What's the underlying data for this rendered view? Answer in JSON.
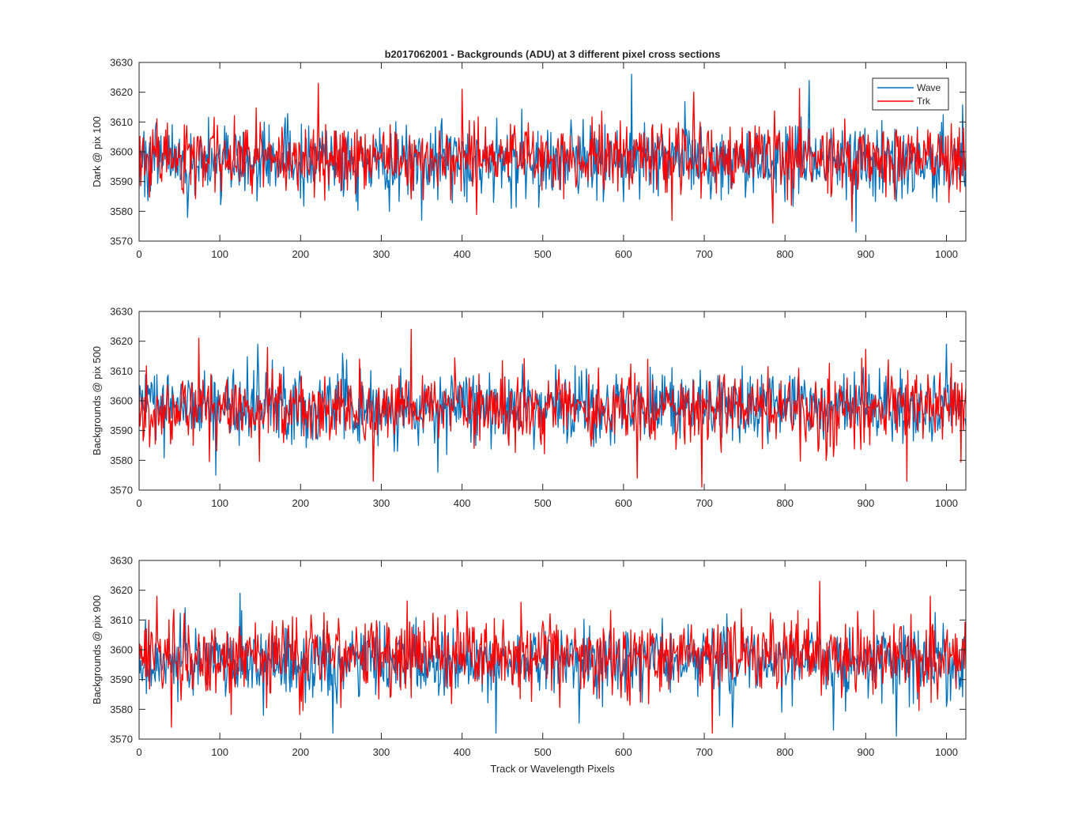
{
  "figure": {
    "title": "b2017062001 - Backgrounds (ADU) at 3 different pixel cross sections",
    "xlabel": "Track or Wavelength Pixels"
  },
  "chart_data": [
    {
      "type": "line",
      "ylabel": "Dark @ pix 100",
      "xlim": [
        0,
        1024
      ],
      "ylim": [
        3570,
        3630
      ],
      "x_ticks": [
        "0",
        "100",
        "200",
        "300",
        "400",
        "500",
        "600",
        "700",
        "800",
        "900",
        "1000"
      ],
      "y_ticks": [
        "3570",
        "3580",
        "3590",
        "3600",
        "3610",
        "3620",
        "3630"
      ],
      "legend": {
        "position": "top-right",
        "entries": [
          "Wave",
          "Trk"
        ]
      },
      "series": [
        {
          "name": "Wave",
          "color": "#0072BD",
          "mean": 3597,
          "sigma": 6.2,
          "seed": 101,
          "spikes": [
            [
              610,
              3626
            ],
            [
              830,
              3624
            ],
            [
              888,
              3573
            ],
            [
              60,
              3578
            ],
            [
              350,
              3577
            ]
          ]
        },
        {
          "name": "Trk",
          "color": "#FF0000",
          "mean": 3598,
          "sigma": 5.8,
          "seed": 202,
          "spikes": [
            [
              222,
              3623
            ],
            [
              660,
              3577
            ],
            [
              785,
              3576
            ],
            [
              400,
              3621
            ],
            [
              687,
              3620
            ]
          ]
        }
      ]
    },
    {
      "type": "line",
      "ylabel": "Backgrounds @ pix 500",
      "xlim": [
        0,
        1024
      ],
      "ylim": [
        3570,
        3630
      ],
      "x_ticks": [
        "0",
        "100",
        "200",
        "300",
        "400",
        "500",
        "600",
        "700",
        "800",
        "900",
        "1000"
      ],
      "y_ticks": [
        "3570",
        "3580",
        "3590",
        "3600",
        "3610",
        "3620",
        "3630"
      ],
      "series": [
        {
          "name": "Wave",
          "color": "#0072BD",
          "mean": 3598,
          "sigma": 6.0,
          "seed": 303,
          "spikes": [
            [
              95,
              3575
            ],
            [
              147,
              3619
            ],
            [
              1000,
              3619
            ],
            [
              370,
              3576
            ]
          ]
        },
        {
          "name": "Trk",
          "color": "#FF0000",
          "mean": 3597,
          "sigma": 6.0,
          "seed": 404,
          "spikes": [
            [
              337,
              3624
            ],
            [
              74,
              3621
            ],
            [
              697,
              3571
            ],
            [
              290,
              3573
            ],
            [
              617,
              3574
            ],
            [
              951,
              3573
            ]
          ]
        }
      ]
    },
    {
      "type": "line",
      "ylabel": "Backgrounds @ pix 900",
      "xlim": [
        0,
        1024
      ],
      "ylim": [
        3570,
        3630
      ],
      "x_ticks": [
        "0",
        "100",
        "200",
        "300",
        "400",
        "500",
        "600",
        "700",
        "800",
        "900",
        "1000"
      ],
      "y_ticks": [
        "3570",
        "3580",
        "3590",
        "3600",
        "3610",
        "3620",
        "3630"
      ],
      "series": [
        {
          "name": "Wave",
          "color": "#0072BD",
          "mean": 3596,
          "sigma": 5.8,
          "seed": 505,
          "spikes": [
            [
              125,
              3619
            ],
            [
              938,
              3571
            ],
            [
              240,
              3572
            ],
            [
              442,
              3572
            ],
            [
              860,
              3573
            ]
          ]
        },
        {
          "name": "Trk",
          "color": "#FF0000",
          "mean": 3598,
          "sigma": 6.2,
          "seed": 606,
          "spikes": [
            [
              843,
              3623
            ],
            [
              22,
              3618
            ],
            [
              710,
              3572
            ],
            [
              40,
              3574
            ],
            [
              980,
              3618
            ]
          ]
        }
      ]
    }
  ]
}
